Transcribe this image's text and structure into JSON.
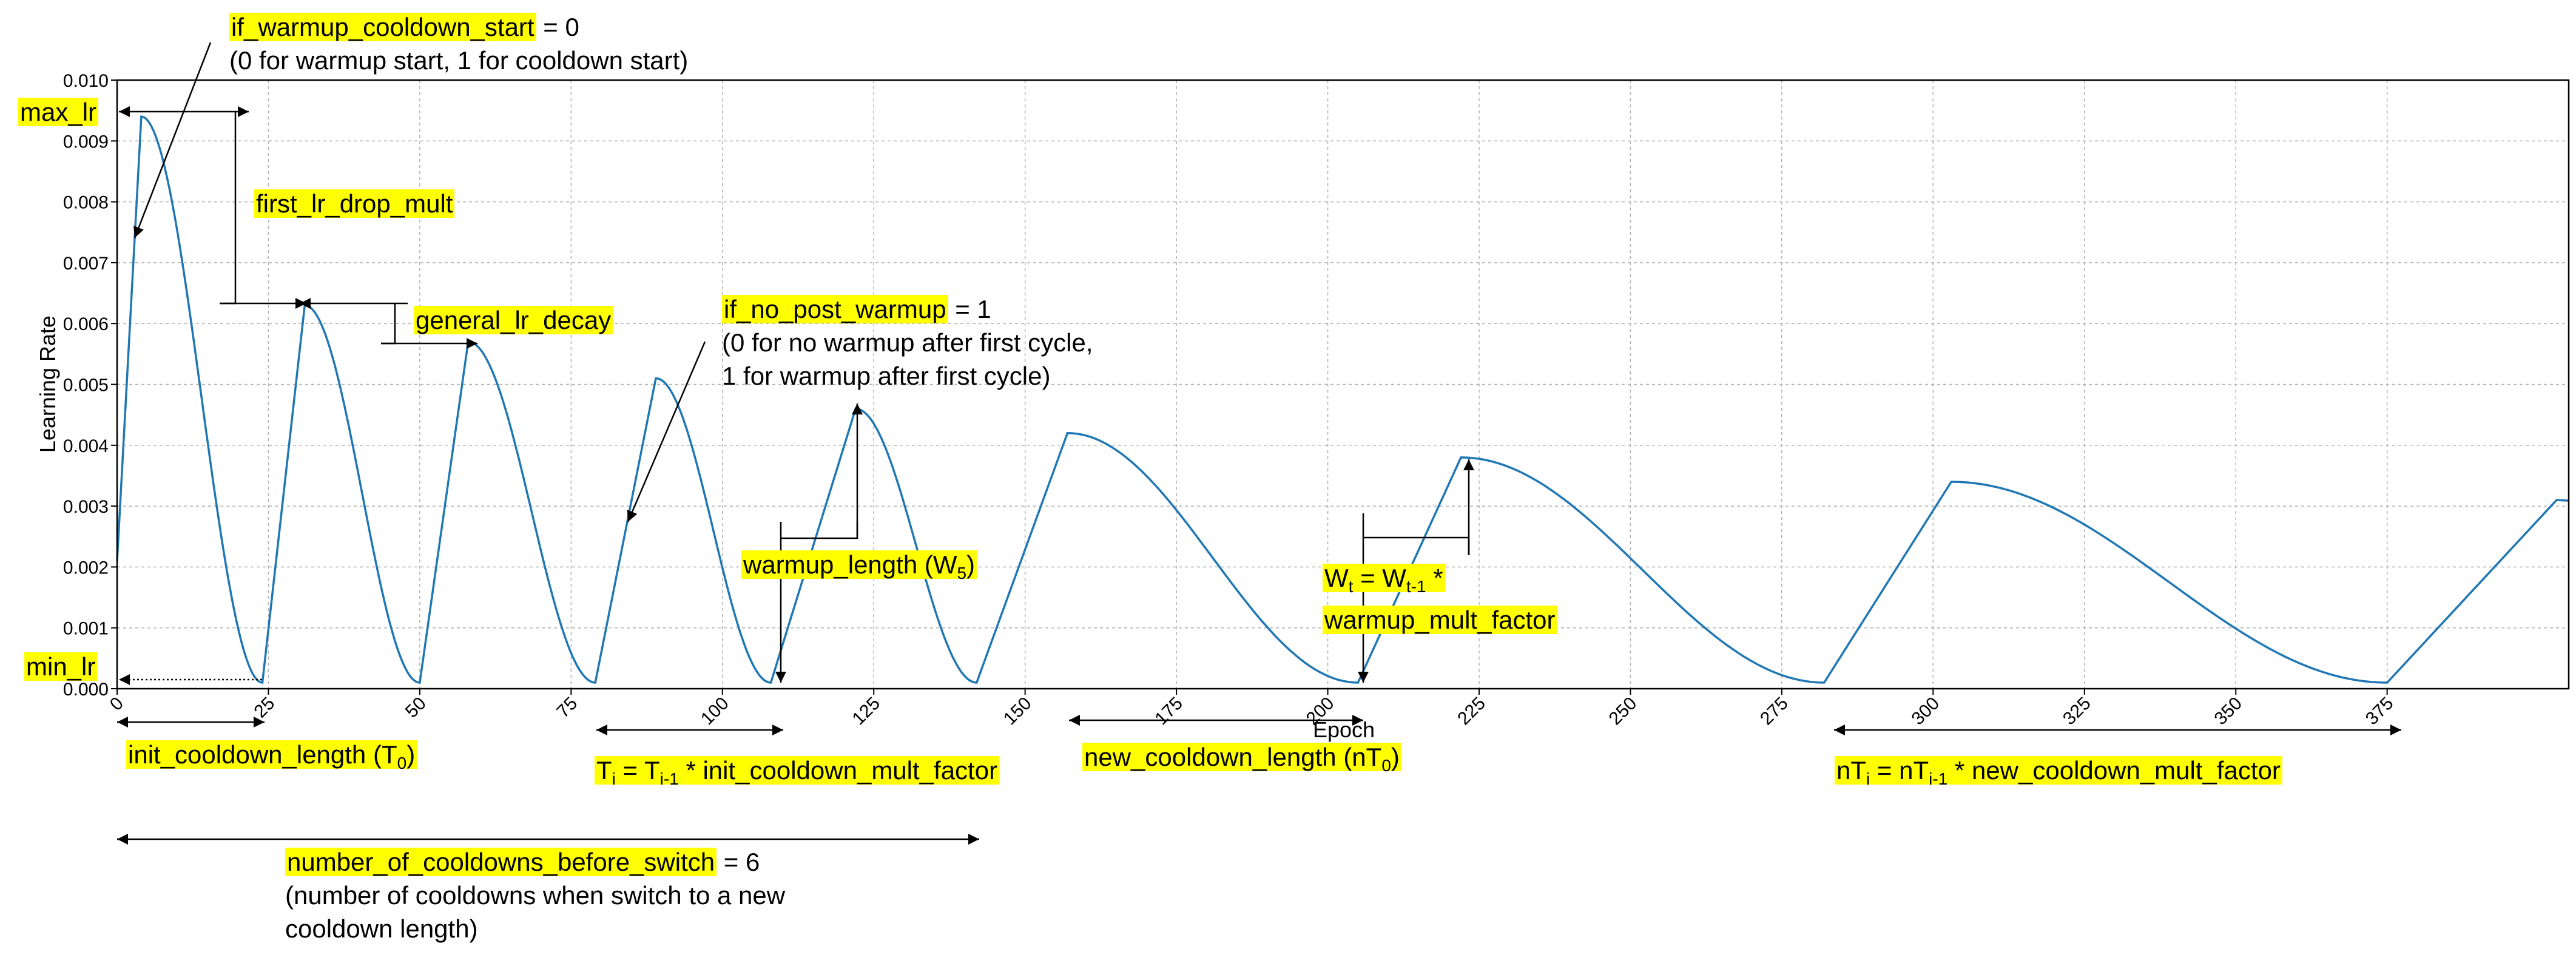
{
  "chart_data": {
    "type": "line",
    "title": "",
    "xlabel": "Epoch",
    "ylabel": "Learning Rate",
    "xlim": [
      0,
      405
    ],
    "ylim": [
      0,
      0.01
    ],
    "grid": true,
    "xticks": [
      0,
      25,
      50,
      75,
      100,
      125,
      150,
      175,
      200,
      225,
      250,
      275,
      300,
      325,
      350,
      375
    ],
    "yticks": [
      0.0,
      0.001,
      0.002,
      0.003,
      0.004,
      0.005,
      0.006,
      0.007,
      0.008,
      0.009,
      0.01
    ],
    "xtick_labels": [
      "0",
      "25",
      "50",
      "75",
      "100",
      "125",
      "150",
      "175",
      "200",
      "225",
      "250",
      "275",
      "300",
      "325",
      "350",
      "375"
    ],
    "ytick_labels": [
      "0.000",
      "0.001",
      "0.002",
      "0.003",
      "0.004",
      "0.005",
      "0.006",
      "0.007",
      "0.008",
      "0.009",
      "0.010"
    ],
    "series": [
      {
        "name": "",
        "color": "#1f77b4",
        "segments": [
          {
            "warmup_start_x": 0,
            "warmup_start_y": 0.0021,
            "peak_x": 4,
            "peak_y": 0.0094,
            "end_x": 24,
            "end_y": 0.0001
          },
          {
            "warmup_start_x": 24,
            "warmup_start_y": 0.0001,
            "peak_x": 31,
            "peak_y": 0.0063,
            "end_x": 50,
            "end_y": 0.0001
          },
          {
            "warmup_start_x": 50,
            "warmup_start_y": 0.0001,
            "peak_x": 58,
            "peak_y": 0.0057,
            "end_x": 79,
            "end_y": 0.0001
          },
          {
            "warmup_start_x": 79,
            "warmup_start_y": 0.0001,
            "peak_x": 89,
            "peak_y": 0.0051,
            "end_x": 108,
            "end_y": 0.0001
          },
          {
            "warmup_start_x": 108,
            "warmup_start_y": 0.0001,
            "peak_x": 122,
            "peak_y": 0.0046,
            "end_x": 142,
            "end_y": 0.0001
          },
          {
            "warmup_start_x": 142,
            "warmup_start_y": 0.0001,
            "peak_x": 157,
            "peak_y": 0.0042,
            "end_x": 205,
            "end_y": 0.0001
          },
          {
            "warmup_start_x": 205,
            "warmup_start_y": 0.0001,
            "peak_x": 222,
            "peak_y": 0.0038,
            "end_x": 282,
            "end_y": 0.0001
          },
          {
            "warmup_start_x": 282,
            "warmup_start_y": 0.0001,
            "peak_x": 303,
            "peak_y": 0.0034,
            "end_x": 375,
            "end_y": 0.0001
          },
          {
            "warmup_start_x": 375,
            "warmup_start_y": 0.0001,
            "peak_x": 403,
            "peak_y": 0.0031,
            "end_x": 405,
            "end_y": 0.00309
          }
        ]
      }
    ]
  },
  "annotations": {
    "max_lr": "max_lr",
    "min_lr": "min_lr",
    "first_lr_drop_mult": "first_lr_drop_mult",
    "general_lr_decay": "general_lr_decay",
    "warmup_cooldown_name": "if_warmup_cooldown_start",
    "warmup_cooldown_value": " = 0",
    "warmup_cooldown_desc": "(0 for warmup start, 1 for cooldown start)",
    "no_post_warmup_name": "if_no_post_warmup",
    "no_post_warmup_value": " = 1",
    "no_post_warmup_desc1": "(0 for no warmup after first cycle,",
    "no_post_warmup_desc2": "1 for warmup after first cycle)",
    "warmup_length_name": "warmup_length (W",
    "warmup_length_sub": "5",
    "warmup_length_close": ")",
    "wt_lhs": "W",
    "wt_lhs_sub": "t",
    "wt_eq": " = W",
    "wt_rhs_sub": "t-1",
    "wt_mult": " *",
    "wt_factor": "warmup_mult_factor",
    "init_cooldown_name": "init_cooldown_length (T",
    "init_cooldown_sub": "0",
    "init_cooldown_close": ")",
    "ti_lhs": "T",
    "ti_lhs_sub": "i",
    "ti_eq": " = T",
    "ti_rhs_sub": "i-1",
    "ti_factor": " * init_cooldown_mult_factor",
    "new_cooldown_name": "new_cooldown_length (nT",
    "new_cooldown_sub": "0",
    "new_cooldown_close": ")",
    "nti_lhs": "nT",
    "nti_lhs_sub": "i",
    "nti_eq": " = nT",
    "nti_rhs_sub": "i-1",
    "nti_factor": " * new_cooldown_mult_factor",
    "num_cooldowns_name": "number_of_cooldowns_before_switch",
    "num_cooldowns_value": " = 6",
    "num_cooldowns_desc1": "(number of cooldowns when switch to a new",
    "num_cooldowns_desc2": "cooldown length)"
  }
}
